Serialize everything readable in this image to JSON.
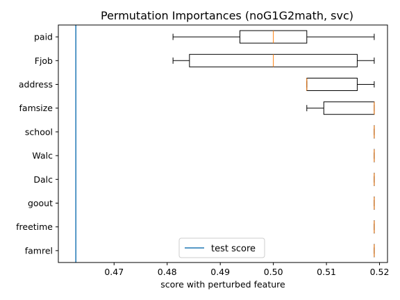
{
  "chart_data": {
    "type": "boxplot",
    "orientation": "horizontal",
    "title": "Permutation Importances (noG1G2math, svc)",
    "xlabel": "score with perturbed feature",
    "ylabel": "",
    "xlim": [
      0.4595,
      0.5215
    ],
    "xticks": [
      0.47,
      0.48,
      0.49,
      0.5,
      0.51,
      0.52
    ],
    "xtick_labels": [
      "0.47",
      "0.48",
      "0.49",
      "0.50",
      "0.51",
      "0.52"
    ],
    "grid": false,
    "legend": {
      "placement": "bottom-center",
      "entries": [
        "test score"
      ]
    },
    "test_score": 0.4628,
    "colors": {
      "test_line": "#1f77b4",
      "median": "#ff7f0e",
      "box": "#000000"
    },
    "features": [
      {
        "name": "paid",
        "whislo": 0.4811,
        "q1": 0.4937,
        "med": 0.5,
        "q3": 0.5063,
        "whishi": 0.519
      },
      {
        "name": "Fjob",
        "whislo": 0.4811,
        "q1": 0.4842,
        "med": 0.5,
        "q3": 0.5158,
        "whishi": 0.519
      },
      {
        "name": "address",
        "whislo": 0.5063,
        "q1": 0.5063,
        "med": 0.5063,
        "q3": 0.5158,
        "whishi": 0.519
      },
      {
        "name": "famsize",
        "whislo": 0.5063,
        "q1": 0.5095,
        "med": 0.519,
        "q3": 0.519,
        "whishi": 0.519
      },
      {
        "name": "school",
        "whislo": 0.519,
        "q1": 0.519,
        "med": 0.519,
        "q3": 0.519,
        "whishi": 0.519
      },
      {
        "name": "Walc",
        "whislo": 0.519,
        "q1": 0.519,
        "med": 0.519,
        "q3": 0.519,
        "whishi": 0.519
      },
      {
        "name": "Dalc",
        "whislo": 0.519,
        "q1": 0.519,
        "med": 0.519,
        "q3": 0.519,
        "whishi": 0.519
      },
      {
        "name": "goout",
        "whislo": 0.519,
        "q1": 0.519,
        "med": 0.519,
        "q3": 0.519,
        "whishi": 0.519
      },
      {
        "name": "freetime",
        "whislo": 0.519,
        "q1": 0.519,
        "med": 0.519,
        "q3": 0.519,
        "whishi": 0.519
      },
      {
        "name": "famrel",
        "whislo": 0.519,
        "q1": 0.519,
        "med": 0.519,
        "q3": 0.519,
        "whishi": 0.519
      }
    ]
  }
}
